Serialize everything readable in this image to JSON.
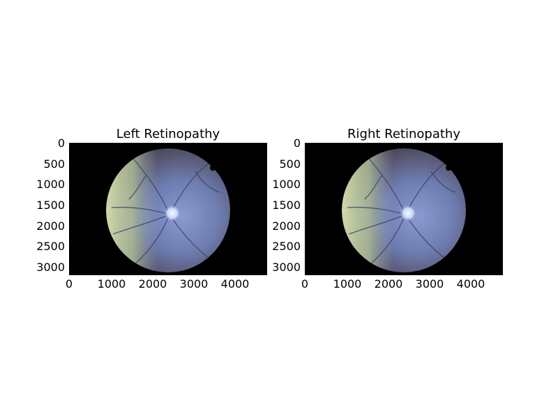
{
  "figure": {
    "panels": [
      {
        "title": "Left Retinopathy",
        "image_name": "retinal-fundus-photo",
        "x_ticks": [
          "0",
          "1000",
          "2000",
          "3000",
          "4000"
        ],
        "y_ticks": [
          "0",
          "500",
          "1000",
          "1500",
          "2000",
          "2500",
          "3000"
        ]
      },
      {
        "title": "Right Retinopathy",
        "image_name": "retinal-fundus-photo",
        "x_ticks": [
          "0",
          "1000",
          "2000",
          "3000",
          "4000"
        ],
        "y_ticks": [
          "0",
          "500",
          "1000",
          "1500",
          "2000",
          "2500",
          "3000"
        ]
      }
    ],
    "colors": {
      "background": "#ffffff",
      "image_background": "#000000",
      "fundus_green_tint": "#c9d6a6",
      "fundus_blue": "#7486b8",
      "fundus_dark": "#4a4758",
      "optic_disc": "#e8f0ff",
      "vessels": "#3b3a6b"
    }
  }
}
